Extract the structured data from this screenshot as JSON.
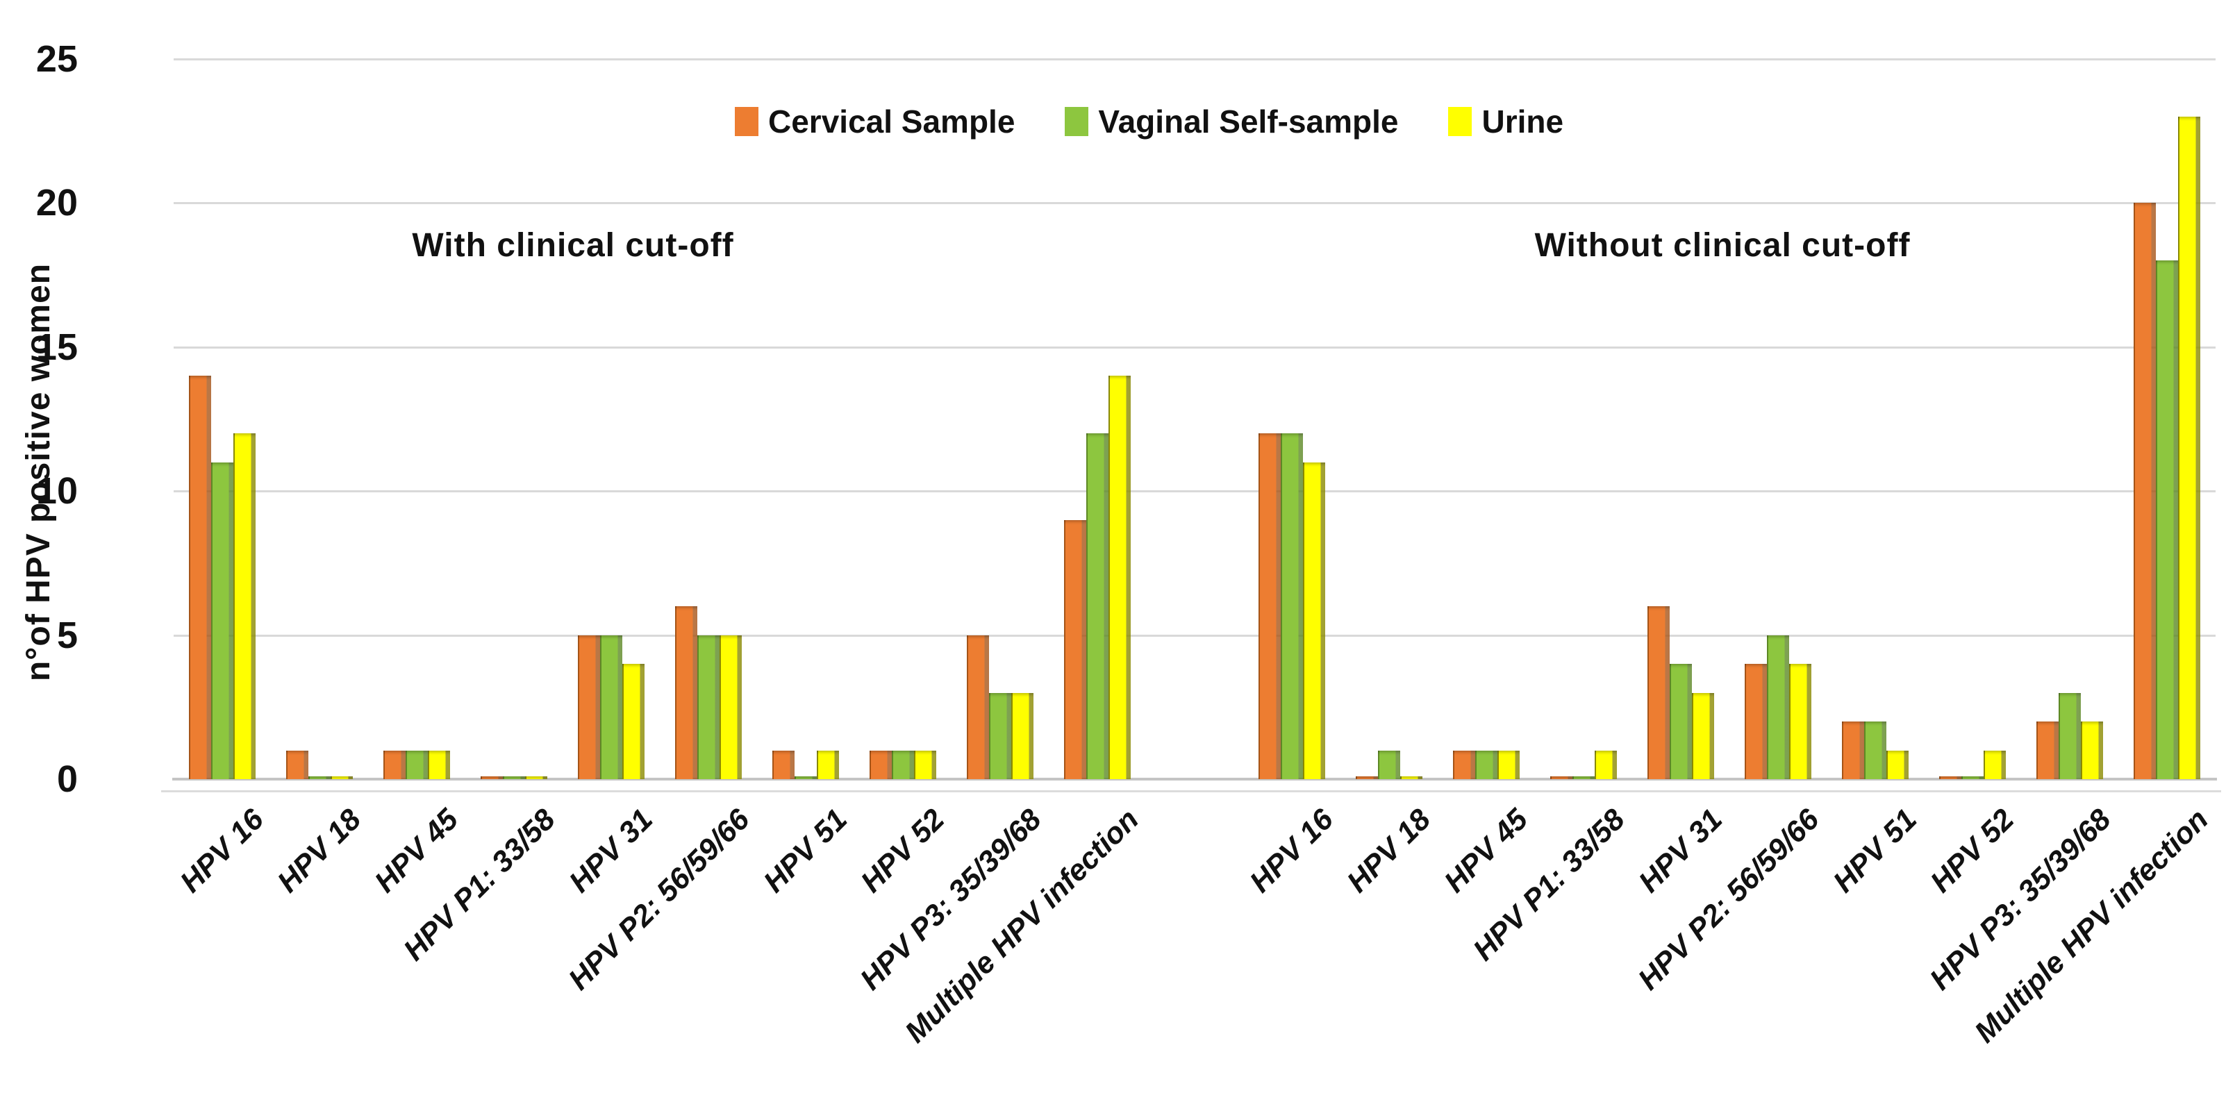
{
  "chart_data": {
    "type": "bar",
    "title": "",
    "ylabel": "n°of HPV positive women",
    "xlabel": "",
    "ylim": [
      0,
      25
    ],
    "yticks": [
      0,
      5,
      10,
      15,
      20,
      25
    ],
    "grid": true,
    "legend_position": "top-center",
    "legend": [
      "Cervical Sample",
      "Vaginal Self-sample",
      "Urine"
    ],
    "colors": {
      "cervical": "#ED7D31",
      "cervical_dark": "#A85518",
      "vaginal": "#8DC63F",
      "vaginal_dark": "#5E8A26",
      "urine": "#FFFF00",
      "urine_dark": "#8B8B00",
      "gridline": "#D9D9D9",
      "axis_line": "#C4C4C4"
    },
    "categories": [
      "HPV 16",
      "HPV 18",
      "HPV 45",
      "HPV P1: 33/58",
      "HPV 31",
      "HPV P2: 56/59/66",
      "HPV 51",
      "HPV 52",
      "HPV P3: 35/39/68",
      "Multiple HPV infection"
    ],
    "groups": [
      {
        "label": "With clinical cut-off",
        "series": [
          {
            "name": "Cervical Sample",
            "color": "#ED7D31",
            "dark": "#A85518",
            "values": [
              14,
              1,
              1,
              0.1,
              5,
              6,
              1,
              1,
              5,
              9
            ]
          },
          {
            "name": "Vaginal Self-sample",
            "color": "#8DC63F",
            "dark": "#5E8A26",
            "values": [
              11,
              0.1,
              1,
              0.1,
              5,
              5,
              0.1,
              1,
              3,
              12
            ]
          },
          {
            "name": "Urine",
            "color": "#FFFF00",
            "dark": "#8B8B00",
            "values": [
              12,
              0.1,
              1,
              0.1,
              4,
              5,
              1,
              1,
              3,
              14
            ]
          }
        ]
      },
      {
        "label": "Without clinical cut-off",
        "series": [
          {
            "name": "Cervical Sample",
            "color": "#ED7D31",
            "dark": "#A85518",
            "values": [
              12,
              0.1,
              1,
              0.1,
              6,
              4,
              2,
              0.1,
              2,
              20
            ]
          },
          {
            "name": "Vaginal Self-sample",
            "color": "#8DC63F",
            "dark": "#5E8A26",
            "values": [
              12,
              1,
              1,
              0.1,
              4,
              5,
              2,
              0.1,
              3,
              18
            ]
          },
          {
            "name": "Urine",
            "color": "#FFFF00",
            "dark": "#8B8B00",
            "values": [
              11,
              0.1,
              1,
              1,
              3,
              4,
              1,
              1,
              2,
              23
            ]
          }
        ]
      }
    ]
  }
}
